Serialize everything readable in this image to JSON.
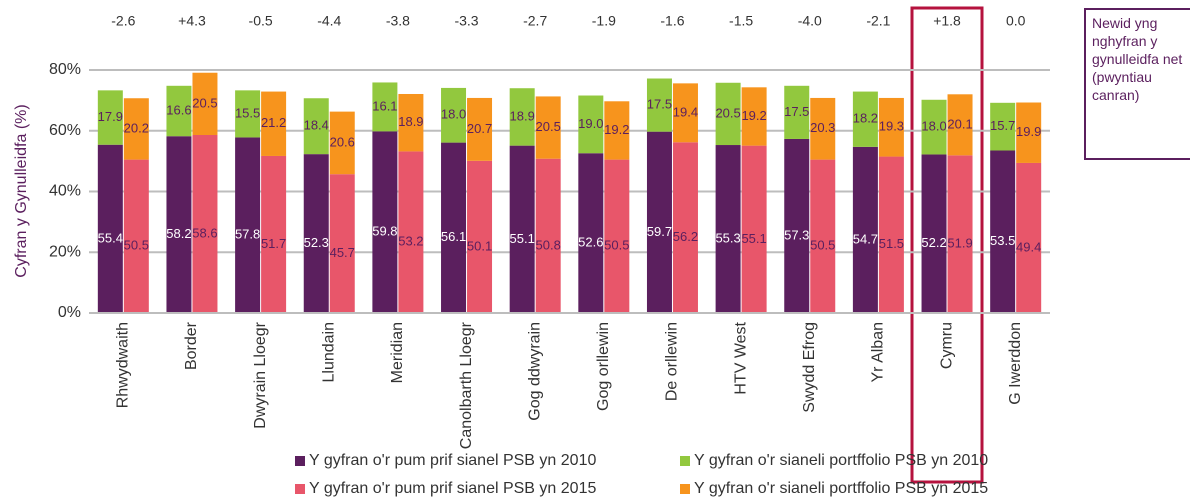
{
  "chart_data": {
    "type": "stacked_grouped_bar",
    "y_label": "Cyfran y Gynulleidfa (%)",
    "categories": [
      "Rhwydwaith",
      "Border",
      "Dwyrain Lloegr",
      "Llundain",
      "Meridian",
      "Canolbarth Lloegr",
      "Gog ddwyrain",
      "Gog orllewin",
      "De orllewin",
      "HTV West",
      "Swydd Efrog",
      "Yr Alban",
      "Cymru",
      "G Iwerddon"
    ],
    "series": [
      {
        "name": "Y gyfran o'r pum prif sianel PSB yn 2010",
        "color": "#5b1f5e",
        "stack": "2010",
        "label_color": "#ffffff",
        "values": [
          55.4,
          58.2,
          57.8,
          52.3,
          59.8,
          56.1,
          55.1,
          52.6,
          59.7,
          55.3,
          57.3,
          54.7,
          52.2,
          53.5
        ]
      },
      {
        "name": "Y gyfran o'r sianeli portffolio PSB yn 2010",
        "color": "#92c83e",
        "stack": "2010",
        "label_color": "#5b1f5e",
        "values": [
          17.9,
          16.6,
          15.5,
          18.4,
          16.1,
          18.0,
          18.9,
          19.0,
          17.5,
          20.5,
          17.5,
          18.2,
          18.0,
          15.7
        ],
        "value_labels": [
          "17.9",
          "16.6",
          "15.5",
          "18.4",
          "16.1",
          "18.0",
          "18.9",
          "19.0",
          "17.5",
          "20.5",
          "17.5",
          "18.2",
          "18.0",
          "15.7"
        ]
      },
      {
        "name": "Y gyfran o'r pum prif sianel PSB yn 2015",
        "color": "#e8566a",
        "stack": "2015",
        "label_color": "#5b1f5e",
        "values": [
          50.5,
          58.6,
          51.7,
          45.7,
          53.2,
          50.1,
          50.8,
          50.5,
          56.2,
          55.1,
          50.5,
          51.5,
          51.9,
          49.4
        ]
      },
      {
        "name": "Y gyfran o'r sianeli portffolio PSB yn 2015",
        "color": "#f7941d",
        "stack": "2015",
        "label_color": "#5b1f5e",
        "values": [
          20.2,
          20.5,
          21.2,
          20.6,
          18.9,
          20.7,
          20.5,
          19.2,
          19.4,
          19.2,
          20.3,
          19.3,
          20.1,
          19.9
        ]
      }
    ],
    "net_change": {
      "title": "Newid yng nghyfran y gynulleidfa net (pwyntiau canran)",
      "values": [
        -2.6,
        4.3,
        -0.5,
        -4.4,
        -3.8,
        -3.3,
        -2.7,
        -1.9,
        -1.6,
        -1.5,
        -4.0,
        -2.1,
        1.8,
        0.0
      ],
      "value_labels": [
        "-2.6",
        "+4.3",
        "-0.5",
        "-4.4",
        "-3.8",
        "-3.3",
        "-2.7",
        "-1.9",
        "-1.6",
        "-1.5",
        "-4.0",
        "-2.1",
        "+1.8",
        "0.0"
      ]
    },
    "ylim": [
      0,
      80
    ],
    "yticks": [
      {
        "value": 0,
        "label": "0%"
      },
      {
        "value": 20,
        "label": "20%"
      },
      {
        "value": 40,
        "label": "40%"
      },
      {
        "value": 60,
        "label": "60%"
      },
      {
        "value": 80,
        "label": "80%"
      }
    ],
    "grid": true,
    "legend": "bottom"
  }
}
